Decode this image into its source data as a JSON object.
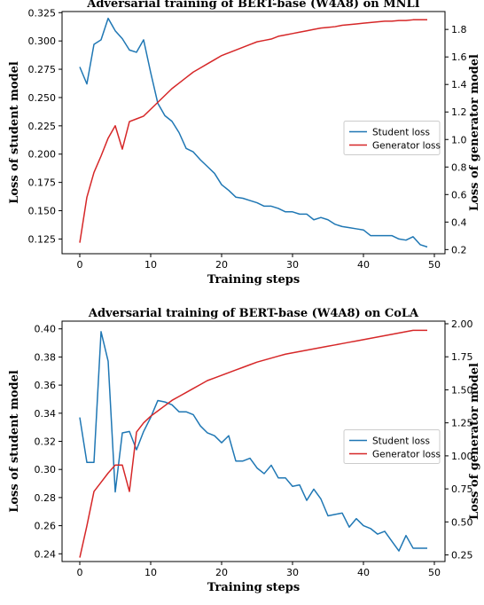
{
  "chart_data": [
    {
      "type": "line",
      "title": "Adversarial training of BERT-base (W4A8) on MNLI",
      "xlabel": "Training steps",
      "ylabel_left": "Loss of student model",
      "ylabel_right": "Loss of generator model",
      "xlim": [
        -2.5,
        51.5
      ],
      "ylim_left": [
        0.112,
        0.326
      ],
      "ylim_right": [
        0.17,
        1.93
      ],
      "xticks": [
        0,
        10,
        20,
        30,
        40,
        50
      ],
      "yticks_left": [
        0.125,
        0.15,
        0.175,
        0.2,
        0.225,
        0.25,
        0.275,
        0.3,
        0.325
      ],
      "ytick_labels_left": [
        "0.125",
        "0.150",
        "0.175",
        "0.200",
        "0.225",
        "0.250",
        "0.275",
        "0.300",
        "0.325"
      ],
      "yticks_right": [
        0.2,
        0.4,
        0.6,
        0.8,
        1.0,
        1.2,
        1.4,
        1.6,
        1.8
      ],
      "ytick_labels_right": [
        "0.2",
        "0.4",
        "0.6",
        "0.8",
        "1.0",
        "1.2",
        "1.4",
        "1.6",
        "1.8"
      ],
      "legend": "center-right",
      "grid": false,
      "x": [
        0,
        1,
        2,
        3,
        4,
        5,
        6,
        7,
        8,
        9,
        10,
        11,
        12,
        13,
        14,
        15,
        16,
        17,
        18,
        19,
        20,
        21,
        22,
        23,
        24,
        25,
        26,
        27,
        28,
        29,
        30,
        31,
        32,
        33,
        34,
        35,
        36,
        37,
        38,
        39,
        40,
        41,
        42,
        43,
        44,
        45,
        46,
        47,
        48,
        49
      ],
      "series": [
        {
          "name": "Student loss",
          "axis": "left",
          "color": "#1f77b4",
          "values": [
            0.277,
            0.262,
            0.297,
            0.301,
            0.32,
            0.309,
            0.302,
            0.292,
            0.29,
            0.301,
            0.272,
            0.245,
            0.234,
            0.229,
            0.219,
            0.205,
            0.202,
            0.195,
            0.189,
            0.183,
            0.173,
            0.168,
            0.162,
            0.161,
            0.159,
            0.157,
            0.154,
            0.154,
            0.152,
            0.149,
            0.149,
            0.147,
            0.147,
            0.142,
            0.144,
            0.142,
            0.138,
            0.136,
            0.135,
            0.134,
            0.133,
            0.128,
            0.128,
            0.128,
            0.128,
            0.125,
            0.124,
            0.127,
            0.12,
            0.118
          ]
        },
        {
          "name": "Generator loss",
          "axis": "right",
          "color": "#d62728",
          "values": [
            0.25,
            0.58,
            0.76,
            0.88,
            1.01,
            1.1,
            0.93,
            1.13,
            1.15,
            1.17,
            1.22,
            1.27,
            1.32,
            1.37,
            1.41,
            1.45,
            1.49,
            1.52,
            1.55,
            1.58,
            1.61,
            1.63,
            1.65,
            1.67,
            1.69,
            1.71,
            1.72,
            1.73,
            1.75,
            1.76,
            1.77,
            1.78,
            1.79,
            1.8,
            1.81,
            1.815,
            1.82,
            1.83,
            1.835,
            1.84,
            1.845,
            1.85,
            1.855,
            1.86,
            1.86,
            1.865,
            1.865,
            1.87,
            1.87,
            1.87
          ]
        }
      ]
    },
    {
      "type": "line",
      "title": "Adversarial training of BERT-base (W4A8) on CoLA",
      "xlabel": "Training steps",
      "ylabel_left": "Loss of student model",
      "ylabel_right": "Loss of generator model",
      "xlim": [
        -2.5,
        51.5
      ],
      "ylim_left": [
        0.2345,
        0.4055
      ],
      "ylim_right": [
        0.2,
        2.02
      ],
      "xticks": [
        0,
        10,
        20,
        30,
        40,
        50
      ],
      "yticks_left": [
        0.24,
        0.26,
        0.28,
        0.3,
        0.32,
        0.34,
        0.36,
        0.38,
        0.4
      ],
      "ytick_labels_left": [
        "0.24",
        "0.26",
        "0.28",
        "0.30",
        "0.32",
        "0.34",
        "0.36",
        "0.38",
        "0.40"
      ],
      "yticks_right": [
        0.25,
        0.5,
        0.75,
        1.0,
        1.25,
        1.5,
        1.75,
        2.0
      ],
      "ytick_labels_right": [
        "0.25",
        "0.50",
        "0.75",
        "1.00",
        "1.25",
        "1.50",
        "1.75",
        "2.00"
      ],
      "legend": "center-right",
      "grid": false,
      "x": [
        0,
        1,
        2,
        3,
        4,
        5,
        6,
        7,
        8,
        9,
        10,
        11,
        12,
        13,
        14,
        15,
        16,
        17,
        18,
        19,
        20,
        21,
        22,
        23,
        24,
        25,
        26,
        27,
        28,
        29,
        30,
        31,
        32,
        33,
        34,
        35,
        36,
        37,
        38,
        39,
        40,
        41,
        42,
        43,
        44,
        45,
        46,
        47,
        48,
        49
      ],
      "series": [
        {
          "name": "Student loss",
          "axis": "left",
          "color": "#1f77b4",
          "values": [
            0.337,
            0.305,
            0.305,
            0.398,
            0.377,
            0.284,
            0.326,
            0.327,
            0.314,
            0.327,
            0.337,
            0.349,
            0.348,
            0.346,
            0.341,
            0.341,
            0.339,
            0.331,
            0.326,
            0.324,
            0.319,
            0.324,
            0.306,
            0.306,
            0.308,
            0.301,
            0.297,
            0.303,
            0.294,
            0.294,
            0.288,
            0.289,
            0.278,
            0.286,
            0.279,
            0.267,
            0.268,
            0.269,
            0.259,
            0.265,
            0.26,
            0.258,
            0.254,
            0.256,
            0.249,
            0.242,
            0.253,
            0.244,
            0.244,
            0.244
          ]
        },
        {
          "name": "Generator loss",
          "axis": "right",
          "color": "#d62728",
          "values": [
            0.23,
            0.47,
            0.73,
            0.8,
            0.87,
            0.93,
            0.93,
            0.73,
            1.18,
            1.25,
            1.3,
            1.34,
            1.38,
            1.42,
            1.45,
            1.48,
            1.51,
            1.54,
            1.57,
            1.59,
            1.61,
            1.63,
            1.65,
            1.67,
            1.69,
            1.71,
            1.725,
            1.74,
            1.755,
            1.77,
            1.78,
            1.79,
            1.8,
            1.81,
            1.82,
            1.83,
            1.84,
            1.85,
            1.86,
            1.87,
            1.88,
            1.89,
            1.9,
            1.91,
            1.92,
            1.93,
            1.94,
            1.95,
            1.95,
            1.95
          ]
        }
      ]
    }
  ]
}
